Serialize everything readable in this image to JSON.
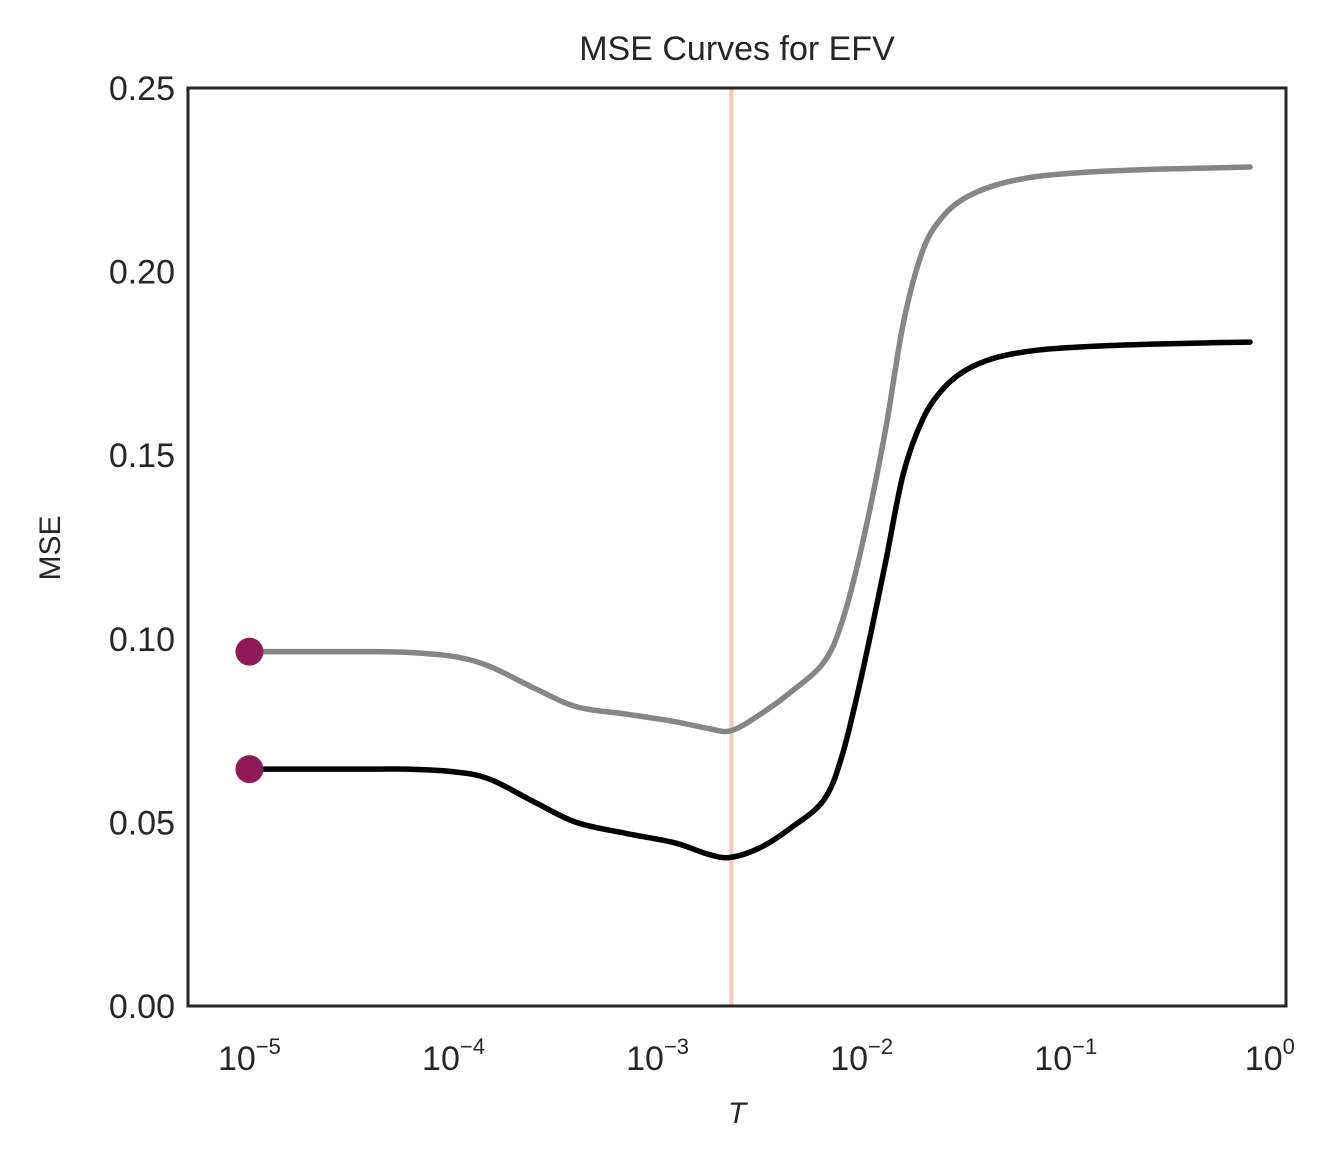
{
  "chart_data": {
    "type": "line",
    "title": "MSE Curves for EFV",
    "xlabel": "T",
    "ylabel": "MSE",
    "xscale": "log",
    "xlim": [
      5e-06,
      1.2
    ],
    "ylim": [
      0,
      0.25
    ],
    "grid": false,
    "legend": "none",
    "xticks": [
      {
        "base": "10",
        "exp": "−5",
        "value": 1e-05
      },
      {
        "base": "10",
        "exp": "−4",
        "value": 0.0001
      },
      {
        "base": "10",
        "exp": "−3",
        "value": 0.001
      },
      {
        "base": "10",
        "exp": "−2",
        "value": 0.01
      },
      {
        "base": "10",
        "exp": "−1",
        "value": 0.1
      },
      {
        "base": "10",
        "exp": "0",
        "value": 1
      }
    ],
    "yticks": [
      "0.00",
      "0.05",
      "0.10",
      "0.15",
      "0.20",
      "0.25"
    ],
    "vline": {
      "x": 0.0023,
      "color": "#f7c9b8"
    },
    "series": [
      {
        "color": "#868686",
        "x": [
          1e-05,
          2e-05,
          4e-05,
          6e-05,
          0.0001,
          0.00015,
          0.00025,
          0.0004,
          0.0007,
          0.0012,
          0.0018,
          0.0023,
          0.0032,
          0.0045,
          0.0065,
          0.008,
          0.01,
          0.013,
          0.016,
          0.02,
          0.025,
          0.032,
          0.045,
          0.07,
          0.12,
          0.25,
          0.5,
          0.8
        ],
        "y": [
          0.0965,
          0.0965,
          0.0965,
          0.0963,
          0.0952,
          0.0925,
          0.0865,
          0.0815,
          0.0795,
          0.0775,
          0.0755,
          0.075,
          0.0795,
          0.0855,
          0.0935,
          0.1045,
          0.125,
          0.156,
          0.186,
          0.206,
          0.215,
          0.22,
          0.2235,
          0.2258,
          0.227,
          0.2278,
          0.2282,
          0.2285
        ]
      },
      {
        "color": "#000000",
        "x": [
          1e-05,
          2e-05,
          4e-05,
          6e-05,
          0.0001,
          0.00015,
          0.00025,
          0.0004,
          0.0007,
          0.0012,
          0.0018,
          0.0023,
          0.0032,
          0.0045,
          0.0065,
          0.008,
          0.01,
          0.013,
          0.016,
          0.02,
          0.025,
          0.032,
          0.045,
          0.07,
          0.12,
          0.25,
          0.5,
          0.8
        ],
        "y": [
          0.0645,
          0.0645,
          0.0645,
          0.0645,
          0.0638,
          0.0618,
          0.0555,
          0.05,
          0.047,
          0.0445,
          0.0412,
          0.0405,
          0.0432,
          0.0485,
          0.056,
          0.068,
          0.09,
          0.12,
          0.145,
          0.16,
          0.168,
          0.173,
          0.1765,
          0.1785,
          0.1795,
          0.1802,
          0.1806,
          0.1808
        ]
      }
    ],
    "markers": [
      {
        "x": 1e-05,
        "y": 0.0965,
        "color": "#8e1b57"
      },
      {
        "x": 1e-05,
        "y": 0.0645,
        "color": "#8e1b57"
      }
    ]
  }
}
